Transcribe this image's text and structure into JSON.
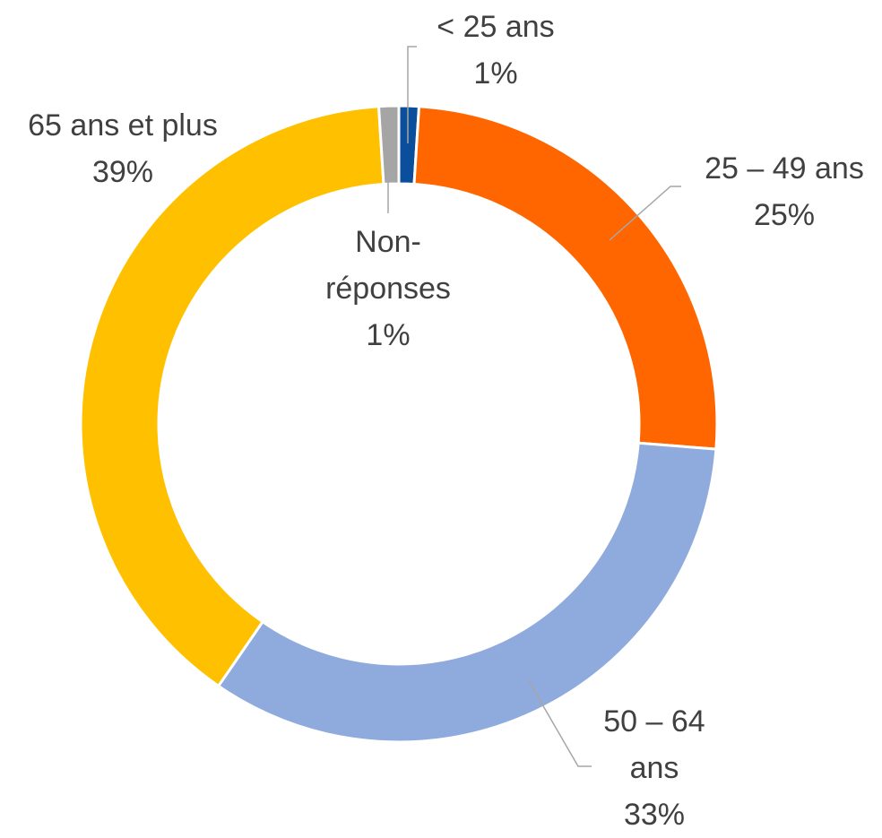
{
  "chart_data": {
    "type": "donut",
    "categories": [
      "< 25 ans",
      "25 – 49 ans",
      "50 – 64 ans",
      "65 ans et plus",
      "Non-réponses"
    ],
    "values": [
      1,
      25,
      33,
      39,
      1
    ],
    "value_labels": [
      "1%",
      "25%",
      "33%",
      "39%",
      "1%"
    ],
    "colors": [
      "#0b4e9b",
      "#ff6600",
      "#8faadc",
      "#ffc000",
      "#a5a5a5"
    ]
  }
}
